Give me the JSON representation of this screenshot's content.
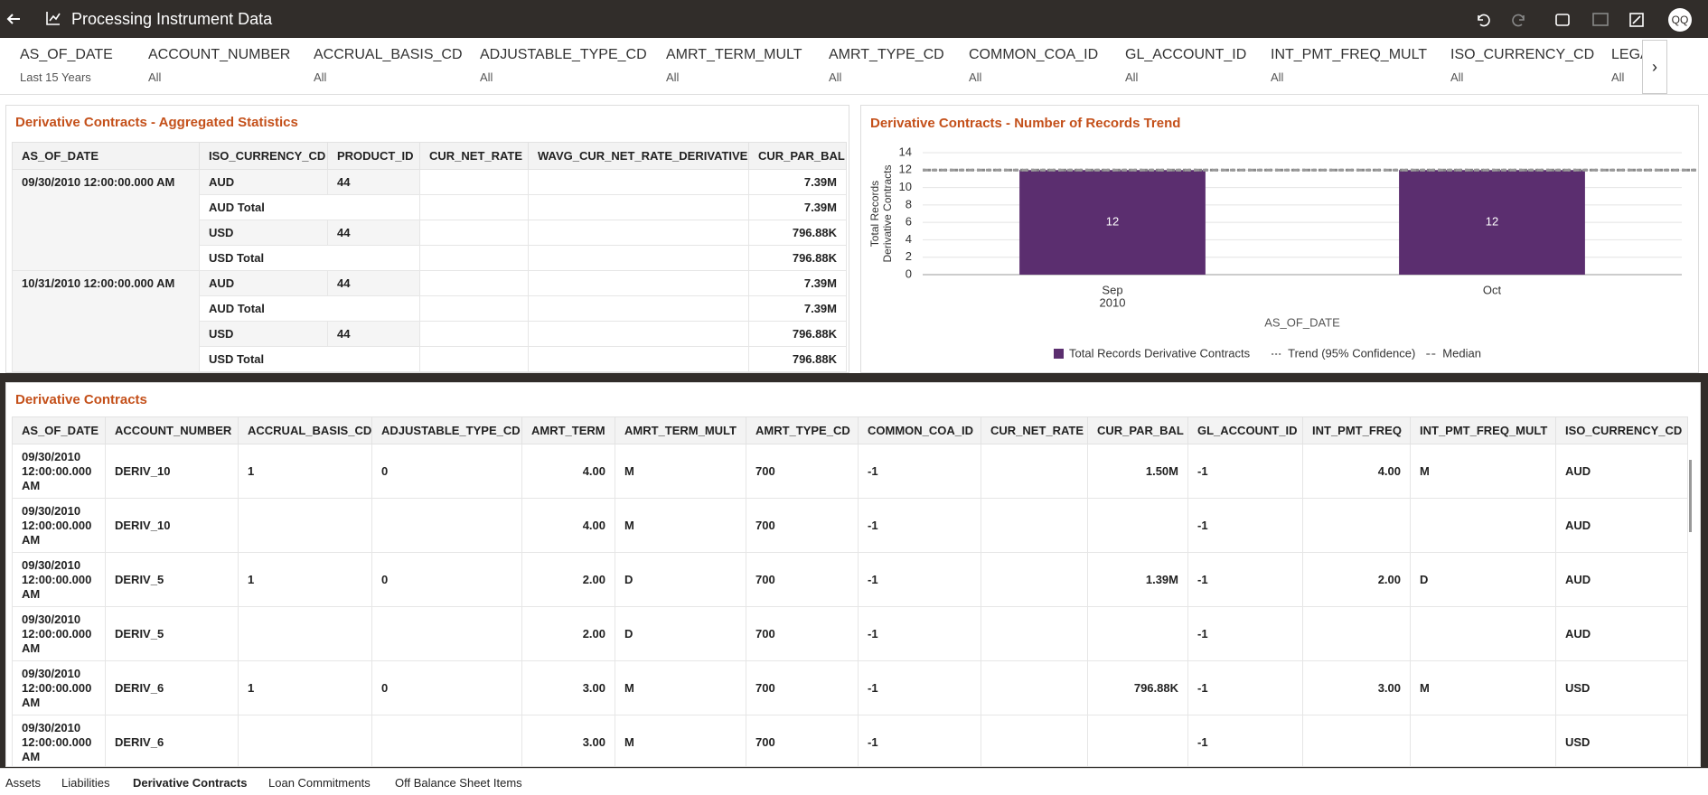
{
  "header": {
    "title": "Processing Instrument Data",
    "avatar": "QQ"
  },
  "filters": [
    {
      "label": "AS_OF_DATE",
      "value": "Last 15 Years"
    },
    {
      "label": "ACCOUNT_NUMBER",
      "value": "All"
    },
    {
      "label": "ACCRUAL_BASIS_CD",
      "value": "All"
    },
    {
      "label": "ADJUSTABLE_TYPE_CD",
      "value": "All"
    },
    {
      "label": "AMRT_TERM_MULT",
      "value": "All"
    },
    {
      "label": "AMRT_TYPE_CD",
      "value": "All"
    },
    {
      "label": "COMMON_COA_ID",
      "value": "All"
    },
    {
      "label": "GL_ACCOUNT_ID",
      "value": "All"
    },
    {
      "label": "INT_PMT_FREQ_MULT",
      "value": "All"
    },
    {
      "label": "ISO_CURRENCY_CD",
      "value": "All"
    },
    {
      "label": "LEGA",
      "value": "All"
    }
  ],
  "stats_table": {
    "title": "Derivative Contracts - Aggregated Statistics",
    "columns": [
      "AS_OF_DATE",
      "ISO_CURRENCY_CD",
      "PRODUCT_ID",
      "CUR_NET_RATE",
      "WAVG_CUR_NET_RATE_DERIVATIVE",
      "CUR_PAR_BAL"
    ],
    "groups": [
      {
        "date": "09/30/2010 12:00:00.000 AM",
        "rows": [
          {
            "currency": "AUD",
            "product_id": "44",
            "cur_par_bal": "7.39M"
          },
          {
            "currency": "AUD Total",
            "cur_par_bal": "7.39M"
          },
          {
            "currency": "USD",
            "product_id": "44",
            "cur_par_bal": "796.88K"
          },
          {
            "currency": "USD Total",
            "cur_par_bal": "796.88K"
          }
        ]
      },
      {
        "date": "10/31/2010 12:00:00.000 AM",
        "rows": [
          {
            "currency": "AUD",
            "product_id": "44",
            "cur_par_bal": "7.39M"
          },
          {
            "currency": "AUD Total",
            "cur_par_bal": "7.39M"
          },
          {
            "currency": "USD",
            "product_id": "44",
            "cur_par_bal": "796.88K"
          },
          {
            "currency": "USD Total",
            "cur_par_bal": "796.88K"
          }
        ]
      }
    ]
  },
  "trend_chart": {
    "type": "bar",
    "title": "Derivative Contracts - Number of Records Trend",
    "y_label": [
      "Total Records",
      "Derivative Contracts"
    ],
    "x_label": "AS_OF_DATE",
    "categories": [
      [
        "Sep",
        "2010"
      ],
      [
        "Oct"
      ]
    ],
    "series": [
      {
        "name": "Total Records Derivative Contracts",
        "color": "#5b2e6f",
        "values": [
          12,
          12
        ]
      }
    ],
    "reference_lines": [
      {
        "name": "Trend (95% Confidence)",
        "value": 12,
        "style": "dotted",
        "color": "#888888"
      },
      {
        "name": "Median",
        "value": 12,
        "style": "dashed",
        "color": "#999999"
      }
    ],
    "ylim": [
      0,
      14
    ],
    "yticks": [
      0,
      2,
      4,
      6,
      8,
      10,
      12,
      14
    ],
    "grid": true
  },
  "main_table": {
    "title": "Derivative Contracts",
    "columns": [
      "AS_OF_DATE",
      "ACCOUNT_NUMBER",
      "ACCRUAL_BASIS_CD",
      "ADJUSTABLE_TYPE_CD",
      "AMRT_TERM",
      "AMRT_TERM_MULT",
      "AMRT_TYPE_CD",
      "COMMON_COA_ID",
      "CUR_NET_RATE",
      "CUR_PAR_BAL",
      "GL_ACCOUNT_ID",
      "INT_PMT_FREQ",
      "INT_PMT_FREQ_MULT",
      "ISO_CURRENCY_CD"
    ],
    "rows": [
      [
        "09/30/2010 12:00:00.000 AM",
        "DERIV_10",
        "1",
        "0",
        "4.00",
        "M",
        "700",
        "-1",
        null,
        "1.50M",
        "-1",
        "4.00",
        "M",
        "AUD"
      ],
      [
        "09/30/2010 12:00:00.000 AM",
        "DERIV_10",
        null,
        null,
        "4.00",
        "M",
        "700",
        "-1",
        null,
        null,
        "-1",
        null,
        null,
        "AUD"
      ],
      [
        "09/30/2010 12:00:00.000 AM",
        "DERIV_5",
        "1",
        "0",
        "2.00",
        "D",
        "700",
        "-1",
        null,
        "1.39M",
        "-1",
        "2.00",
        "D",
        "AUD"
      ],
      [
        "09/30/2010 12:00:00.000 AM",
        "DERIV_5",
        null,
        null,
        "2.00",
        "D",
        "700",
        "-1",
        null,
        null,
        "-1",
        null,
        null,
        "AUD"
      ],
      [
        "09/30/2010 12:00:00.000 AM",
        "DERIV_6",
        "1",
        "0",
        "3.00",
        "M",
        "700",
        "-1",
        null,
        "796.88K",
        "-1",
        "3.00",
        "M",
        "USD"
      ],
      [
        "09/30/2010 12:00:00.000 AM",
        "DERIV_6",
        null,
        null,
        "3.00",
        "M",
        "700",
        "-1",
        null,
        null,
        "-1",
        null,
        null,
        "USD"
      ]
    ]
  },
  "tabs": [
    "Assets",
    "Liabilities",
    "Derivative Contracts",
    "Loan Commitments",
    "Off Balance Sheet Items"
  ]
}
